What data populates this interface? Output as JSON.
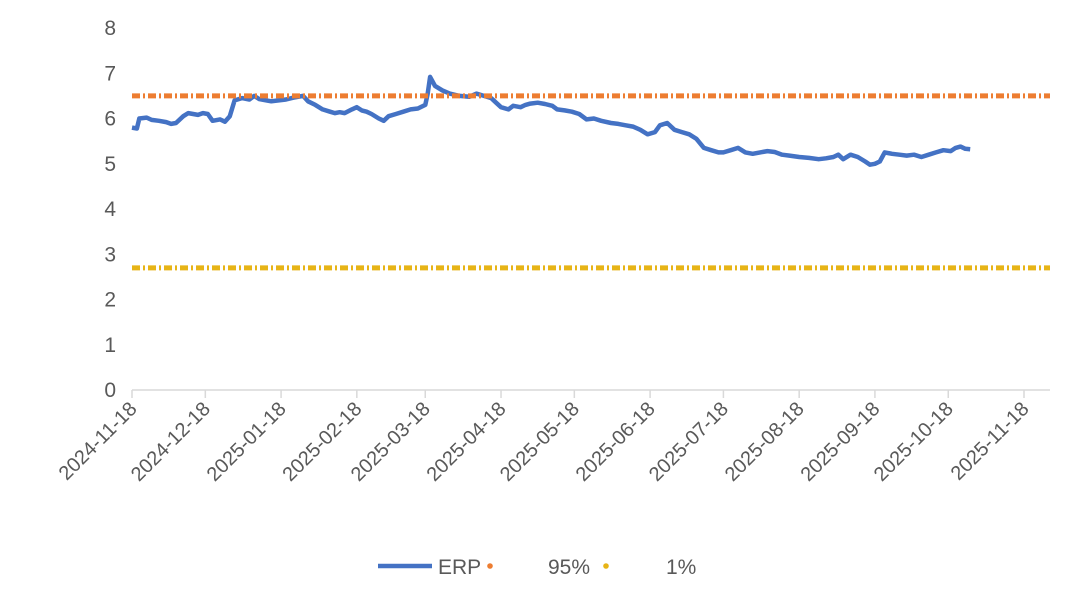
{
  "chart_data": {
    "type": "line",
    "title": "",
    "xlabel": "",
    "ylabel": "",
    "ylim": [
      0,
      8
    ],
    "yticks": [
      "0",
      "1",
      "2",
      "3",
      "4",
      "5",
      "6",
      "7",
      "8"
    ],
    "xlim": [
      "2024-11-18",
      "2025-11-30"
    ],
    "xticks": [
      "2024-11-18",
      "2024-12-18",
      "2025-01-18",
      "2025-02-18",
      "2025-03-18",
      "2025-04-18",
      "2025-05-18",
      "2025-06-18",
      "2025-07-18",
      "2025-08-18",
      "2025-09-18",
      "2025-10-18",
      "2025-11-18"
    ],
    "grid": false,
    "legend": "bottom",
    "series": [
      {
        "name": "ERP",
        "style": "solid",
        "color": "#4472C4",
        "points": [
          [
            "2024-11-18",
            5.8
          ],
          [
            "2024-11-20",
            5.78
          ],
          [
            "2024-11-21",
            6.0
          ],
          [
            "2024-11-24",
            6.02
          ],
          [
            "2024-11-26",
            5.97
          ],
          [
            "2024-11-29",
            5.95
          ],
          [
            "2024-12-02",
            5.92
          ],
          [
            "2024-12-04",
            5.88
          ],
          [
            "2024-12-06",
            5.9
          ],
          [
            "2024-12-09",
            6.05
          ],
          [
            "2024-12-11",
            6.12
          ],
          [
            "2024-12-13",
            6.1
          ],
          [
            "2024-12-15",
            6.08
          ],
          [
            "2024-12-17",
            6.12
          ],
          [
            "2024-12-19",
            6.1
          ],
          [
            "2024-12-21",
            5.95
          ],
          [
            "2024-12-24",
            5.98
          ],
          [
            "2024-12-26",
            5.93
          ],
          [
            "2024-12-28",
            6.05
          ],
          [
            "2024-12-30",
            6.4
          ],
          [
            "2025-01-02",
            6.45
          ],
          [
            "2025-01-05",
            6.42
          ],
          [
            "2025-01-07",
            6.5
          ],
          [
            "2025-01-09",
            6.43
          ],
          [
            "2025-01-12",
            6.4
          ],
          [
            "2025-01-14",
            6.38
          ],
          [
            "2025-01-17",
            6.4
          ],
          [
            "2025-01-20",
            6.42
          ],
          [
            "2025-01-23",
            6.46
          ],
          [
            "2025-01-27",
            6.5
          ],
          [
            "2025-01-29",
            6.38
          ],
          [
            "2025-02-01",
            6.3
          ],
          [
            "2025-02-04",
            6.2
          ],
          [
            "2025-02-07",
            6.15
          ],
          [
            "2025-02-09",
            6.12
          ],
          [
            "2025-02-11",
            6.14
          ],
          [
            "2025-02-13",
            6.12
          ],
          [
            "2025-02-16",
            6.2
          ],
          [
            "2025-02-18",
            6.25
          ],
          [
            "2025-02-20",
            6.18
          ],
          [
            "2025-02-22",
            6.15
          ],
          [
            "2025-02-24",
            6.1
          ],
          [
            "2025-02-27",
            6.0
          ],
          [
            "2025-03-01",
            5.95
          ],
          [
            "2025-03-03",
            6.05
          ],
          [
            "2025-03-06",
            6.1
          ],
          [
            "2025-03-09",
            6.15
          ],
          [
            "2025-03-12",
            6.2
          ],
          [
            "2025-03-15",
            6.22
          ],
          [
            "2025-03-18",
            6.3
          ],
          [
            "2025-03-19",
            6.55
          ],
          [
            "2025-03-20",
            6.92
          ],
          [
            "2025-03-22",
            6.72
          ],
          [
            "2025-03-25",
            6.62
          ],
          [
            "2025-03-28",
            6.55
          ],
          [
            "2025-04-01",
            6.5
          ],
          [
            "2025-04-05",
            6.48
          ],
          [
            "2025-04-08",
            6.55
          ],
          [
            "2025-04-11",
            6.5
          ],
          [
            "2025-04-14",
            6.45
          ],
          [
            "2025-04-16",
            6.35
          ],
          [
            "2025-04-18",
            6.25
          ],
          [
            "2025-04-21",
            6.2
          ],
          [
            "2025-04-23",
            6.28
          ],
          [
            "2025-04-26",
            6.25
          ],
          [
            "2025-04-28",
            6.3
          ],
          [
            "2025-04-30",
            6.33
          ],
          [
            "2025-05-03",
            6.35
          ],
          [
            "2025-05-06",
            6.32
          ],
          [
            "2025-05-09",
            6.28
          ],
          [
            "2025-05-11",
            6.2
          ],
          [
            "2025-05-14",
            6.18
          ],
          [
            "2025-05-17",
            6.15
          ],
          [
            "2025-05-20",
            6.1
          ],
          [
            "2025-05-23",
            5.98
          ],
          [
            "2025-05-26",
            6.0
          ],
          [
            "2025-05-29",
            5.95
          ],
          [
            "2025-06-02",
            5.9
          ],
          [
            "2025-06-05",
            5.88
          ],
          [
            "2025-06-08",
            5.85
          ],
          [
            "2025-06-11",
            5.82
          ],
          [
            "2025-06-14",
            5.75
          ],
          [
            "2025-06-17",
            5.65
          ],
          [
            "2025-06-20",
            5.7
          ],
          [
            "2025-06-22",
            5.85
          ],
          [
            "2025-06-25",
            5.9
          ],
          [
            "2025-06-28",
            5.75
          ],
          [
            "2025-07-01",
            5.7
          ],
          [
            "2025-07-04",
            5.65
          ],
          [
            "2025-07-07",
            5.55
          ],
          [
            "2025-07-10",
            5.35
          ],
          [
            "2025-07-13",
            5.3
          ],
          [
            "2025-07-16",
            5.25
          ],
          [
            "2025-07-18",
            5.25
          ],
          [
            "2025-07-21",
            5.3
          ],
          [
            "2025-07-24",
            5.35
          ],
          [
            "2025-07-27",
            5.25
          ],
          [
            "2025-07-30",
            5.22
          ],
          [
            "2025-08-02",
            5.25
          ],
          [
            "2025-08-05",
            5.28
          ],
          [
            "2025-08-08",
            5.26
          ],
          [
            "2025-08-11",
            5.2
          ],
          [
            "2025-08-14",
            5.18
          ],
          [
            "2025-08-18",
            5.15
          ],
          [
            "2025-08-22",
            5.13
          ],
          [
            "2025-08-26",
            5.1
          ],
          [
            "2025-08-29",
            5.12
          ],
          [
            "2025-09-01",
            5.15
          ],
          [
            "2025-09-03",
            5.2
          ],
          [
            "2025-09-05",
            5.1
          ],
          [
            "2025-09-08",
            5.2
          ],
          [
            "2025-09-11",
            5.15
          ],
          [
            "2025-09-14",
            5.05
          ],
          [
            "2025-09-16",
            4.98
          ],
          [
            "2025-09-18",
            5.0
          ],
          [
            "2025-09-20",
            5.05
          ],
          [
            "2025-09-22",
            5.25
          ],
          [
            "2025-09-25",
            5.22
          ],
          [
            "2025-09-28",
            5.2
          ],
          [
            "2025-10-01",
            5.18
          ],
          [
            "2025-10-04",
            5.2
          ],
          [
            "2025-10-07",
            5.15
          ],
          [
            "2025-10-10",
            5.2
          ],
          [
            "2025-10-13",
            5.25
          ],
          [
            "2025-10-16",
            5.3
          ],
          [
            "2025-10-19",
            5.28
          ],
          [
            "2025-10-21",
            5.35
          ],
          [
            "2025-10-23",
            5.38
          ],
          [
            "2025-10-25",
            5.33
          ],
          [
            "2025-10-27",
            5.32
          ]
        ]
      },
      {
        "name": "95%",
        "style": "dashed",
        "color": "#ED7D31",
        "points": [
          [
            "2024-11-18",
            6.5
          ],
          [
            "2025-11-30",
            6.5
          ]
        ]
      },
      {
        "name": "1%",
        "style": "dashed",
        "color": "#E7B416",
        "points": [
          [
            "2024-11-18",
            2.7
          ],
          [
            "2025-11-30",
            2.7
          ]
        ]
      }
    ]
  }
}
